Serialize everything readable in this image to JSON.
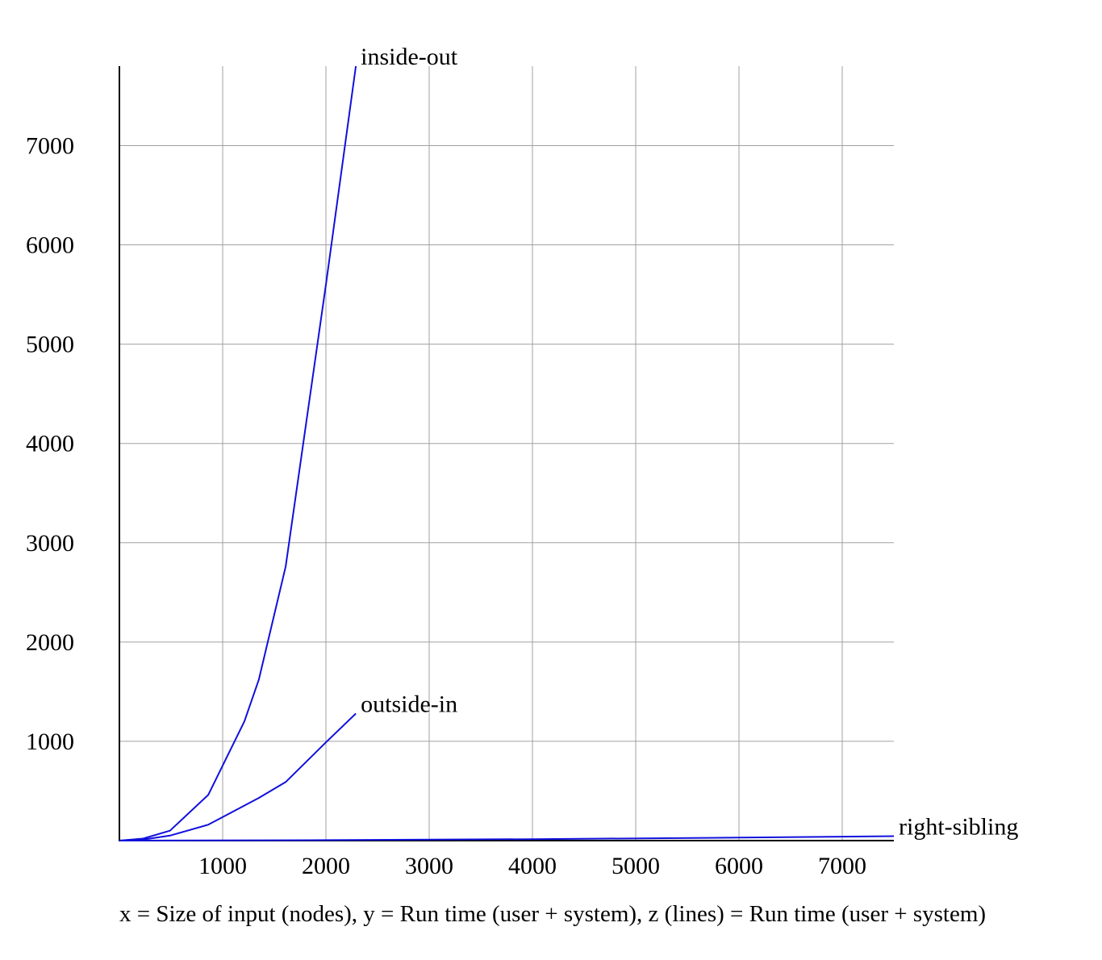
{
  "chart_data": {
    "type": "line",
    "title": "",
    "caption": "x = Size of input (nodes), y = Run time (user + system), z (lines) = Run time (user + system)",
    "xlim": [
      0,
      7500
    ],
    "ylim": [
      0,
      7800
    ],
    "x_ticks": [
      1000,
      2000,
      3000,
      4000,
      5000,
      6000,
      7000
    ],
    "y_ticks": [
      1000,
      2000,
      3000,
      4000,
      5000,
      6000,
      7000
    ],
    "x_tick_labels": [
      "1000",
      "2000",
      "3000",
      "4000",
      "5000",
      "6000",
      "7000"
    ],
    "y_tick_labels": [
      "1000",
      "2000",
      "3000",
      "4000",
      "5000",
      "6000",
      "7000"
    ],
    "grid": true,
    "line_color": "#1010dd",
    "series": [
      {
        "name": "inside-out",
        "points": [
          [
            0,
            0
          ],
          [
            230,
            20
          ],
          [
            490,
            100
          ],
          [
            860,
            460
          ],
          [
            1210,
            1200
          ],
          [
            1350,
            1620
          ],
          [
            1610,
            2760
          ],
          [
            2000,
            5600
          ],
          [
            2290,
            7800
          ]
        ]
      },
      {
        "name": "outside-in",
        "points": [
          [
            0,
            0
          ],
          [
            230,
            10
          ],
          [
            490,
            50
          ],
          [
            860,
            160
          ],
          [
            1350,
            430
          ],
          [
            1610,
            590
          ],
          [
            2000,
            990
          ],
          [
            2290,
            1280
          ]
        ]
      },
      {
        "name": "right-sibling",
        "points": [
          [
            0,
            0
          ],
          [
            2000,
            5
          ],
          [
            4000,
            15
          ],
          [
            6000,
            30
          ],
          [
            7500,
            45
          ]
        ]
      }
    ]
  }
}
